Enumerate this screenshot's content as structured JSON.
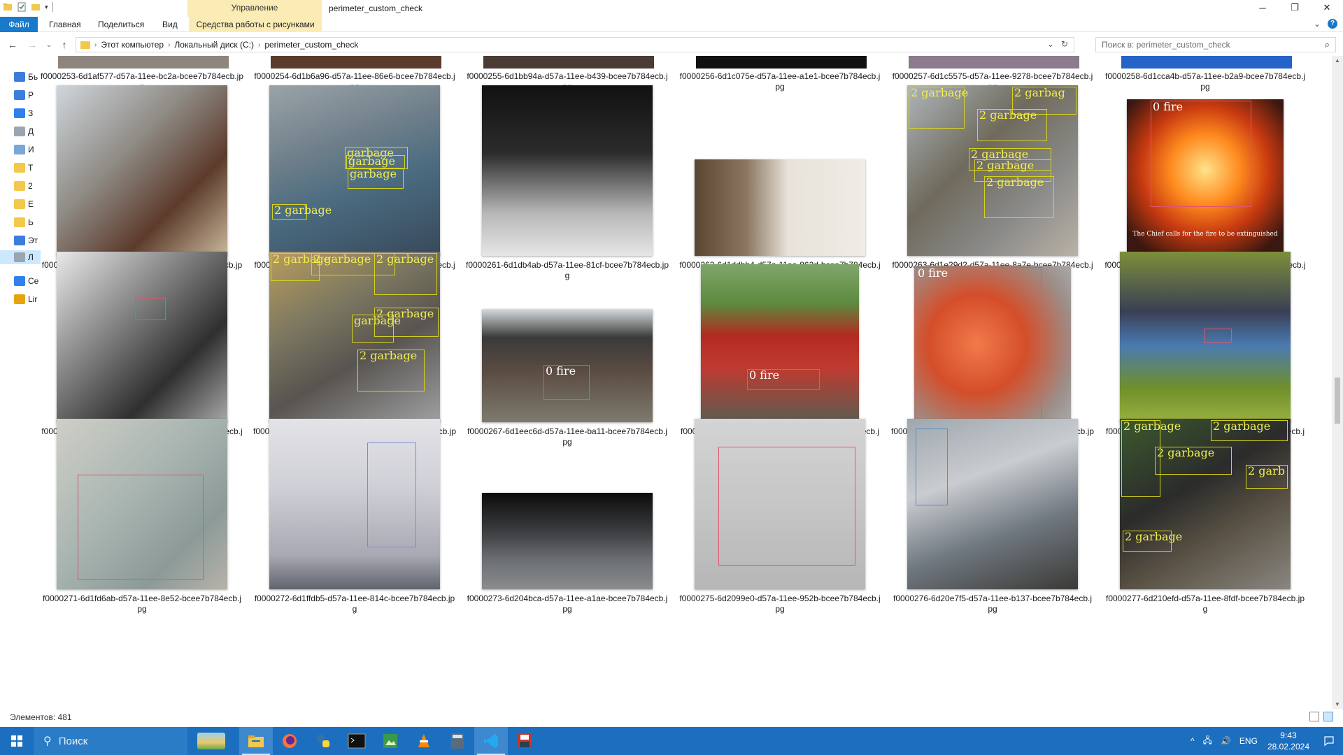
{
  "window": {
    "title": "perimeter_custom_check",
    "manage_label": "Управление",
    "minimize": "─",
    "restore": "❐",
    "close": "✕"
  },
  "ribbon": {
    "tabs": [
      "Файл",
      "Главная",
      "Поделиться",
      "Вид"
    ],
    "tools_tab": "Средства работы с рисунками",
    "expand": "⌄",
    "help": "?"
  },
  "address": {
    "back": "←",
    "forward": "→",
    "recent": "⌄",
    "up": "↑",
    "crumbs": [
      "Этот компьютер",
      "Локальный диск (C:)",
      "perimeter_custom_check"
    ],
    "sep": "›",
    "dropdown": "⌄",
    "refresh": "↻",
    "search_placeholder": "Поиск в: perimeter_custom_check",
    "search_icon": "⌕"
  },
  "nav": [
    {
      "label": "Бь",
      "icon": "star-icon"
    },
    {
      "label": "Р",
      "icon": "desktop-icon"
    },
    {
      "label": "З",
      "icon": "download-icon"
    },
    {
      "label": "Д",
      "icon": "document-icon"
    },
    {
      "label": "И",
      "icon": "picture-icon"
    },
    {
      "label": "Т",
      "icon": "folder-icon"
    },
    {
      "label": "2",
      "icon": "folder-icon"
    },
    {
      "label": "Е",
      "icon": "folder-icon"
    },
    {
      "label": "Ь",
      "icon": "folder-icon"
    },
    {
      "label": "Эт",
      "icon": "computer-icon"
    },
    {
      "label": "Л",
      "icon": "drive-icon"
    },
    {
      "label": "Се",
      "icon": "network-icon"
    },
    {
      "label": "Lir",
      "icon": "linux-icon"
    }
  ],
  "partial_row": [
    "f0000253-6d1af577-d57a-11ee-bc2a-bcee7b784ecb.jpg",
    "f0000254-6d1b6a96-d57a-11ee-86e6-bcee7b784ecb.jpg",
    "f0000255-6d1bb94a-d57a-11ee-b439-bcee7b784ecb.jpg",
    "f0000256-6d1c075e-d57a-11ee-a1e1-bcee7b784ecb.jpg",
    "f0000257-6d1c5575-d57a-11ee-9278-bcee7b784ecb.jpg",
    "f0000258-6d1cca4b-d57a-11ee-b2a9-bcee7b784ecb.jpg"
  ],
  "rows": [
    [
      {
        "name": "f0000259-6d1d1861-d57a-11ee-affc-bcee7b784ecb.jpg",
        "labels": []
      },
      {
        "name": "f0000260-6d1d661d-d57a-11ee-96eb-bcee7b784ecb.jpg",
        "labels": [
          "garbage",
          "garbage",
          "garbage",
          "2 garbage"
        ]
      },
      {
        "name": "f0000261-6d1db4ab-d57a-11ee-81cf-bcee7b784ecb.jpg",
        "labels": []
      },
      {
        "name": "f0000262-6d1ddbb4-d57a-11ee-862d-bcee7b784ecb.jpg",
        "labels": []
      },
      {
        "name": "f0000263-6d1e29d2-d57a-11ee-8a7e-bcee7b784ecb.jpg",
        "labels": [
          "2 garbage",
          "2 garbag",
          "2 garbage",
          "2 garbage",
          "2 garbage",
          "2 garbage"
        ]
      },
      {
        "name": "f0000264-6d1e50d9-d57a-11ee-8103-bcee7b784ecb.jpg",
        "labels": [
          "0 fire"
        ],
        "caption": "The Chief calls for the fire to be extinguished"
      }
    ],
    [
      {
        "name": "f0000265-6d1e7752-d57a-11ee-b8da-bcee7b784ecb.jpg",
        "labels": []
      },
      {
        "name": "f0000266-6d1ec563-d57a-11ee-9f45-bcee7b784ecb.jpg",
        "labels": [
          "2 garbage",
          "2 garbage",
          "2 garbage",
          "garbage",
          "2 garbage",
          "2 garbage"
        ]
      },
      {
        "name": "f0000267-6d1eec6d-d57a-11ee-ba11-bcee7b784ecb.jpg",
        "labels": [
          "0 fire"
        ]
      },
      {
        "name": "f0000268-6d1f3a82-d57a-11ee-9009-bcee7b784ecb.jpg",
        "labels": [
          "0 fire"
        ]
      },
      {
        "name": "f0000269-6d1f618c-d57a-11ee-9aa5-bcee7b784ecb.jpg",
        "labels": [
          "0 fire"
        ]
      },
      {
        "name": "f0000270-6d1f8896-d57a-11ee-9796-bcee7b784ecb.jpg",
        "labels": []
      }
    ],
    [
      {
        "name": "f0000271-6d1fd6ab-d57a-11ee-8e52-bcee7b784ecb.jpg",
        "labels": []
      },
      {
        "name": "f0000272-6d1ffdb5-d57a-11ee-814c-bcee7b784ecb.jpg",
        "labels": []
      },
      {
        "name": "f0000273-6d204bca-d57a-11ee-a1ae-bcee7b784ecb.jpg",
        "labels": []
      },
      {
        "name": "f0000275-6d2099e0-d57a-11ee-952b-bcee7b784ecb.jpg",
        "labels": []
      },
      {
        "name": "f0000276-6d20e7f5-d57a-11ee-b137-bcee7b784ecb.jpg",
        "labels": []
      },
      {
        "name": "f0000277-6d210efd-d57a-11ee-8fdf-bcee7b784ecb.jpg",
        "labels": [
          "2 garbage",
          "2 garbage",
          "2 garbage",
          "2 garb",
          "2 garbage"
        ]
      }
    ]
  ],
  "status": {
    "items_count": "Элементов: 481"
  },
  "taskbar": {
    "search_placeholder": "Поиск",
    "apps": [
      "city-wallpaper-app",
      "file-explorer-icon",
      "firefox-icon",
      "python-icon",
      "terminal-icon",
      "image-viewer-icon",
      "vlc-icon",
      "calculator-icon",
      "vscode-icon",
      "floppy-save-icon"
    ],
    "tray_chevron": "^",
    "network": "🖧",
    "volume": "🔊",
    "lang": "ENG",
    "time": "9:43",
    "date": "28.02.2024"
  },
  "colors": {
    "accent": "#1979ca",
    "taskbar": "#1c6fbf",
    "selection": "#cce8ff",
    "manage_tab": "#fbecb5",
    "garbage_box": "#d7d21e",
    "fire_box": "#e0566b"
  }
}
